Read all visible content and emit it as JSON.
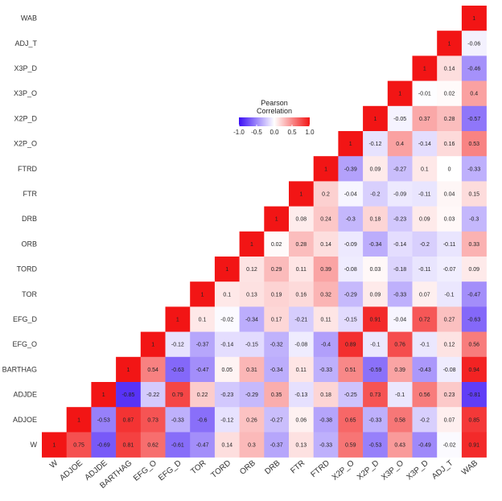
{
  "chart_data": {
    "type": "heatmap",
    "variables": [
      "W",
      "ADJOE",
      "ADJDE",
      "BARTHAG",
      "EFG_O",
      "EFG_D",
      "TOR",
      "TORD",
      "ORB",
      "DRB",
      "FTR",
      "FTRD",
      "X2P_O",
      "X2P_D",
      "X3P_O",
      "X3P_D",
      "ADJ_T",
      "WAB"
    ],
    "rows": [
      {
        "name": "WAB",
        "values": [
          1
        ]
      },
      {
        "name": "ADJ_T",
        "values": [
          1,
          -0.06
        ]
      },
      {
        "name": "X3P_D",
        "values": [
          1,
          0.14,
          -0.46
        ]
      },
      {
        "name": "X3P_O",
        "values": [
          1,
          -0.01,
          0.02,
          0.4
        ]
      },
      {
        "name": "X2P_D",
        "values": [
          1,
          -0.05,
          0.37,
          0.28,
          -0.57
        ]
      },
      {
        "name": "X2P_O",
        "values": [
          1,
          -0.12,
          0.4,
          -0.14,
          0.16,
          0.53
        ]
      },
      {
        "name": "FTRD",
        "values": [
          1,
          -0.39,
          0.09,
          -0.27,
          0.1,
          0,
          -0.33
        ]
      },
      {
        "name": "FTR",
        "values": [
          1,
          0.2,
          -0.04,
          -0.2,
          -0.09,
          -0.11,
          0.04,
          0.15
        ]
      },
      {
        "name": "DRB",
        "values": [
          1,
          0.08,
          0.24,
          -0.3,
          0.18,
          -0.23,
          0.09,
          0.03,
          -0.3
        ]
      },
      {
        "name": "ORB",
        "values": [
          1,
          0.02,
          0.28,
          0.14,
          -0.09,
          -0.34,
          -0.14,
          -0.2,
          -0.11,
          0.33
        ]
      },
      {
        "name": "TORD",
        "values": [
          1,
          0.12,
          0.29,
          0.11,
          0.39,
          -0.08,
          0.03,
          -0.18,
          -0.11,
          -0.07,
          0.09
        ]
      },
      {
        "name": "TOR",
        "values": [
          1,
          0.1,
          0.13,
          0.19,
          0.16,
          0.32,
          -0.29,
          0.09,
          -0.33,
          0.07,
          -0.1,
          -0.47
        ]
      },
      {
        "name": "EFG_D",
        "values": [
          1,
          0.1,
          -0.02,
          -0.34,
          0.17,
          -0.21,
          0.11,
          -0.15,
          0.91,
          -0.04,
          0.72,
          0.27,
          -0.63
        ]
      },
      {
        "name": "EFG_O",
        "values": [
          1,
          -0.12,
          -0.37,
          -0.14,
          -0.15,
          -0.32,
          -0.08,
          -0.4,
          0.89,
          -0.1,
          0.76,
          -0.1,
          0.12,
          0.56
        ]
      },
      {
        "name": "BARTHAG",
        "values": [
          1,
          0.54,
          -0.63,
          -0.47,
          0.05,
          0.31,
          -0.34,
          0.11,
          -0.33,
          0.51,
          -0.59,
          0.39,
          -0.43,
          -0.08,
          0.94
        ]
      },
      {
        "name": "ADJDE",
        "values": [
          1,
          -0.85,
          -0.22,
          0.79,
          0.22,
          -0.23,
          -0.29,
          0.35,
          -0.13,
          0.18,
          -0.25,
          0.73,
          -0.1,
          0.56,
          0.23,
          -0.81
        ]
      },
      {
        "name": "ADJOE",
        "values": [
          1,
          -0.53,
          0.87,
          0.73,
          -0.33,
          -0.6,
          -0.12,
          0.26,
          -0.27,
          0.06,
          -0.38,
          0.65,
          -0.33,
          0.58,
          -0.2,
          0.07,
          0.85
        ]
      },
      {
        "name": "W",
        "values": [
          1,
          0.75,
          -0.69,
          0.81,
          0.62,
          -0.61,
          -0.47,
          0.14,
          0.3,
          -0.37,
          0.13,
          -0.33,
          0.59,
          -0.53,
          0.43,
          -0.49,
          -0.02,
          0.91
        ]
      }
    ],
    "legend": {
      "title_line1": "Pearson",
      "title_line2": "Correlation",
      "ticks": [
        "-1.0",
        "-0.5",
        "0.0",
        "0.5",
        "1.0"
      ],
      "range": [
        -1,
        1
      ],
      "placement": "top-center"
    },
    "colors": {
      "low": "#3b0ff5",
      "mid": "#ffffff",
      "high": "#f21515"
    }
  }
}
